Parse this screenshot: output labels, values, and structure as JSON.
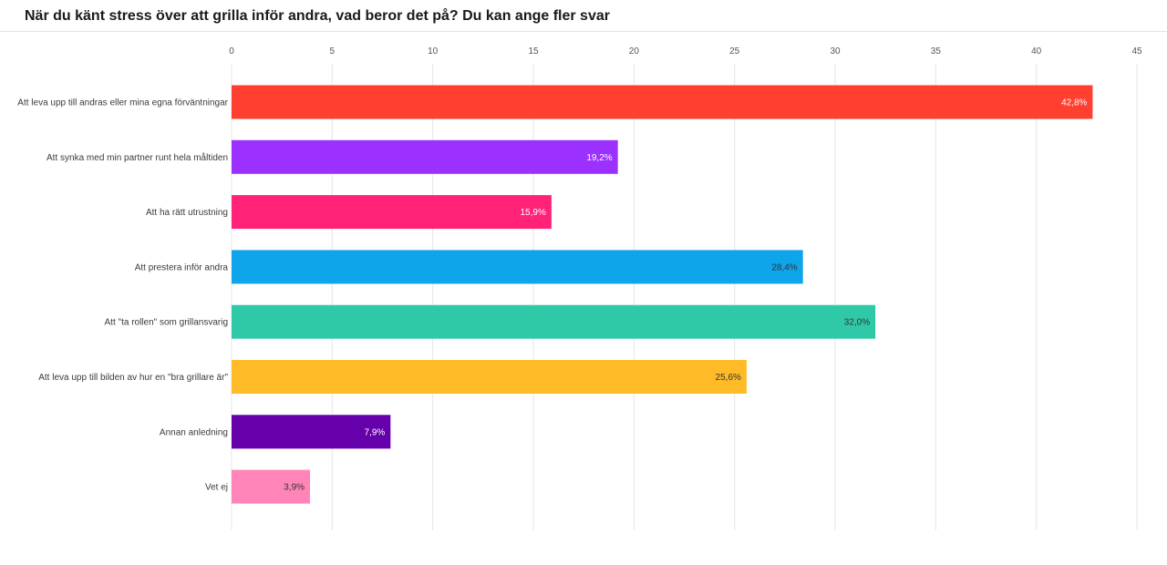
{
  "title": "När du känt stress över att grilla inför andra, vad beror det på? Du kan ange fler svar",
  "chart_data": {
    "type": "bar",
    "orientation": "horizontal",
    "title": "När du känt stress över att grilla inför andra, vad beror det på? Du kan ange fler svar",
    "xlim": [
      0,
      45
    ],
    "x_ticks": [
      "0",
      "5",
      "10",
      "15",
      "20",
      "25",
      "30",
      "35",
      "40",
      "45"
    ],
    "tick_values": [
      0,
      5,
      10,
      15,
      20,
      25,
      30,
      35,
      40,
      45
    ],
    "grid": true,
    "categories": [
      "Att leva upp till andras eller mina egna förväntningar",
      "Att synka med min partner runt hela måltiden",
      "Att ha rätt utrustning",
      "Att prestera inför andra",
      "Att \"ta rollen\" som grillansvarig",
      "Att leva upp till bilden av hur en \"bra grillare är\"",
      "Annan anledning",
      "Vet ej"
    ],
    "values": [
      42.8,
      19.2,
      15.9,
      28.4,
      32.0,
      25.6,
      7.9,
      3.9
    ],
    "value_labels": [
      "42,8%",
      "19,2%",
      "15,9%",
      "28,4%",
      "32,0%",
      "25,6%",
      "7,9%",
      "3,9%"
    ],
    "colors": [
      "#ff3f2f",
      "#9b30ff",
      "#ff2277",
      "#0ea5ea",
      "#30c9a8",
      "#ffbb27",
      "#6600aa",
      "#ff85b8"
    ],
    "label_colors": [
      "#ffffff",
      "#ffffff",
      "#ffffff",
      "#333333",
      "#333333",
      "#333333",
      "#ffffff",
      "#333333"
    ]
  }
}
